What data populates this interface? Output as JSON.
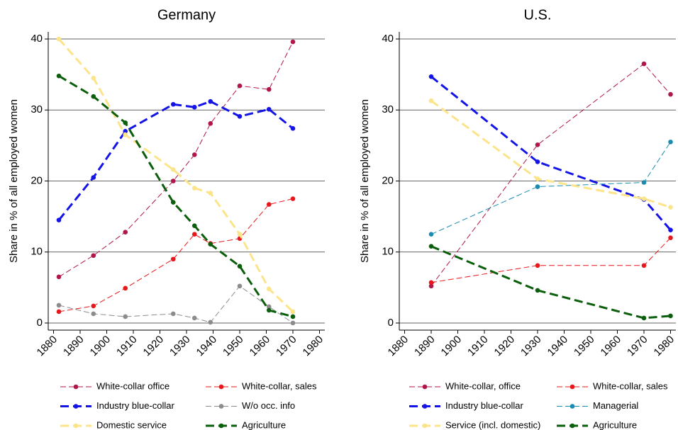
{
  "chart_data": [
    {
      "type": "line",
      "title": "Germany",
      "ylabel": "Share in % of all employed women",
      "x": [
        1882,
        1895,
        1907,
        1925,
        1933,
        1939,
        1950,
        1961,
        1970
      ],
      "xlim": [
        1878,
        1982
      ],
      "xticks": [
        1880,
        1890,
        1900,
        1910,
        1920,
        1930,
        1940,
        1950,
        1960,
        1970,
        1980
      ],
      "ylim": [
        -1,
        41
      ],
      "yticks": [
        0,
        10,
        20,
        30,
        40
      ],
      "grid": true,
      "series": [
        {
          "name": "White-collar office",
          "color": "#b0164a",
          "line_width": 1,
          "values": [
            6.5,
            9.5,
            12.8,
            20.0,
            23.7,
            28.1,
            33.4,
            32.9,
            39.6
          ]
        },
        {
          "name": "White-collar, sales",
          "color": "#e8171b",
          "line_width": 1,
          "values": [
            1.6,
            2.4,
            4.9,
            9.0,
            12.5,
            11.2,
            11.9,
            16.7,
            17.5
          ]
        },
        {
          "name": "Industry blue-collar",
          "color": "#1414e6",
          "line_width": 3,
          "values": [
            14.5,
            20.5,
            27.0,
            30.8,
            30.4,
            31.2,
            29.1,
            30.1,
            27.4
          ]
        },
        {
          "name": "W/o occ. info",
          "color": "#8c8c8c",
          "line_width": 1,
          "values": [
            2.5,
            1.3,
            0.9,
            1.3,
            0.7,
            0.1,
            5.2,
            2.3,
            0.0
          ]
        },
        {
          "name": "Domestic service",
          "color": "#fce48a",
          "line_width": 3,
          "values": [
            40.0,
            34.5,
            26.5,
            21.6,
            19.0,
            18.3,
            12.5,
            4.8,
            1.6
          ]
        },
        {
          "name": "Agriculture",
          "color": "#0b5e0b",
          "line_width": 3,
          "values": [
            34.8,
            31.9,
            28.2,
            17.0,
            13.7,
            11.1,
            8.0,
            1.8,
            0.9
          ]
        }
      ]
    },
    {
      "type": "line",
      "title": "U.S.",
      "ylabel": "Share in % of all employed women",
      "x": [
        1890,
        1930,
        1970,
        1980
      ],
      "xlim": [
        1878,
        1982
      ],
      "xticks": [
        1880,
        1890,
        1900,
        1910,
        1920,
        1930,
        1940,
        1950,
        1960,
        1970,
        1980
      ],
      "ylim": [
        -1,
        41
      ],
      "yticks": [
        0,
        10,
        20,
        30,
        40
      ],
      "grid": true,
      "series": [
        {
          "name": "White-collar, office",
          "color": "#b0164a",
          "line_width": 1,
          "values": [
            5.2,
            25.1,
            36.5,
            32.2
          ]
        },
        {
          "name": "White-collar, sales",
          "color": "#e8171b",
          "line_width": 1,
          "values": [
            5.7,
            8.1,
            8.1,
            12.0
          ]
        },
        {
          "name": "Industry blue-collar",
          "color": "#1414e6",
          "line_width": 3,
          "values": [
            34.7,
            22.7,
            17.4,
            13.1
          ]
        },
        {
          "name": "Managerial",
          "color": "#1a8cb0",
          "line_width": 1,
          "values": [
            12.5,
            19.2,
            19.8,
            25.5
          ]
        },
        {
          "name": "Service (incl. domestic)",
          "color": "#fce48a",
          "line_width": 3,
          "values": [
            31.3,
            20.3,
            17.5,
            16.3
          ]
        },
        {
          "name": "Agriculture",
          "color": "#0b5e0b",
          "line_width": 3,
          "values": [
            10.8,
            4.6,
            0.7,
            1.0
          ]
        }
      ]
    }
  ]
}
